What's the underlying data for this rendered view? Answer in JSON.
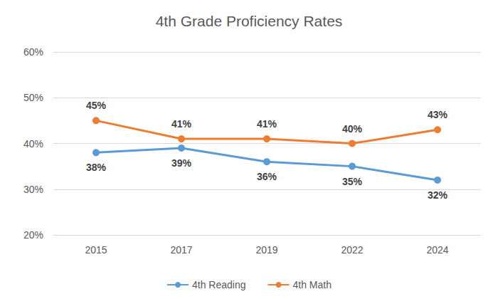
{
  "chart_data": {
    "type": "line",
    "title": "4th Grade Proficiency Rates",
    "categories": [
      "2015",
      "2017",
      "2019",
      "2022",
      "2024"
    ],
    "series": [
      {
        "name": "4th Reading",
        "color": "#5b9bd5",
        "values": [
          38,
          39,
          36,
          35,
          32
        ],
        "value_labels": [
          "38%",
          "39%",
          "36%",
          "35%",
          "32%"
        ]
      },
      {
        "name": "4th Math",
        "color": "#ed7d31",
        "values": [
          45,
          41,
          41,
          40,
          43
        ],
        "value_labels": [
          "45%",
          "41%",
          "41%",
          "40%",
          "43%"
        ]
      }
    ],
    "ylim": [
      20,
      60
    ],
    "yticks": [
      {
        "value": 20,
        "label": "20%"
      },
      {
        "value": 30,
        "label": "30%"
      },
      {
        "value": 40,
        "label": "40%"
      },
      {
        "value": 50,
        "label": "50%"
      },
      {
        "value": 60,
        "label": "60%"
      }
    ],
    "grid": true,
    "legend": "bottom",
    "data_labels": true,
    "marker": "circle"
  }
}
